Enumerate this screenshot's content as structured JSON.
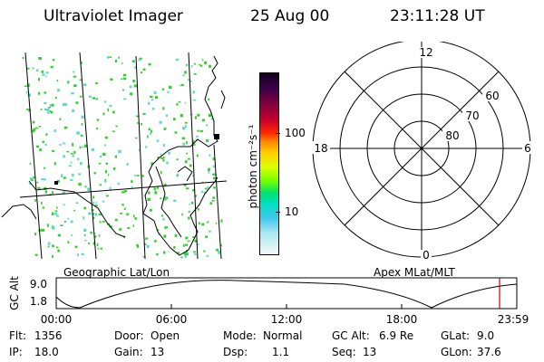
{
  "header": {
    "instrument": "Ultraviolet Imager",
    "date": "25 Aug 00",
    "time": "23:11:28 UT"
  },
  "colorbar": {
    "unit_label": "photon cm⁻²s⁻¹",
    "ticks": [
      "100",
      "10"
    ]
  },
  "panels": {
    "left_label": "Geographic Lat/Lon",
    "right_label": "Apex MLat/MLT"
  },
  "polar": {
    "mlt_labels": [
      "12",
      "18",
      "6",
      "0"
    ],
    "lat_labels": [
      "60",
      "70",
      "80"
    ]
  },
  "altitude_plot": {
    "ylabel": "GC Alt",
    "yticks": [
      "9.0",
      "1.8"
    ],
    "xticks": [
      "00:00",
      "06:00",
      "12:00",
      "18:00",
      "23:59"
    ]
  },
  "info": {
    "flt_label": "Flt:",
    "flt_value": "1356",
    "ip_label": "IP:",
    "ip_value": "18.0",
    "door_label": "Door:",
    "door_value": "Open",
    "gain_label": "Gain:",
    "gain_value": "13",
    "mode_label": "Mode:",
    "mode_value": "Normal",
    "dsp_label": "Dsp:",
    "dsp_value": "1.1",
    "gcalt_label": "GC Alt:",
    "gcalt_value": "6.9 Re",
    "seq_label": "Seq:",
    "seq_value": "13",
    "glat_label": "GLat:",
    "glat_value": "9.0",
    "glon_label": "GLon:",
    "glon_value": "37.6"
  },
  "colors": {
    "marker": "#d40000",
    "pixel": "#34d02a",
    "pixel_alt": "#5fd9c8"
  }
}
